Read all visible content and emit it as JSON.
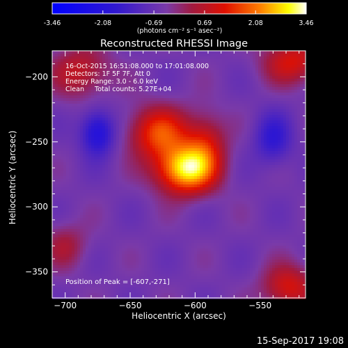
{
  "chart_data": {
    "type": "heatmap",
    "title": "Reconstructed RHESSI Image",
    "xlabel": "Heliocentric X (arcsec)",
    "ylabel": "Heliocentric Y (arcsec)",
    "xlim": [
      -710,
      -515
    ],
    "ylim": [
      -370,
      -180
    ],
    "x_ticks": [
      -700,
      -650,
      -600,
      -550
    ],
    "y_ticks": [
      -200,
      -250,
      -300,
      -350
    ],
    "colorbar": {
      "min": -3.46,
      "max": 3.46,
      "ticks": [
        -3.46,
        -2.08,
        -0.69,
        0.69,
        2.08,
        3.46
      ],
      "tick_labels": [
        "-3.46",
        "-2.08",
        "-0.69",
        "0.69",
        "2.08",
        "3.46"
      ],
      "unit_label": "(photons cm⁻² s⁻¹ asec⁻²)"
    },
    "annotations": {
      "time": "16-Oct-2015 16:51:08.000 to 17:01:08.000",
      "detectors": "Detectors: 1F 5F 7F, Att 0",
      "energy": "Energy Range: 3.0 - 6.0 keV",
      "method": "Clean     Total counts: 5.27E+04",
      "peak": "Position of Peak = [-607,-271]"
    },
    "peak": [
      -607,
      -271
    ],
    "sources": [
      {
        "x": -607,
        "y": -271,
        "amp": 3.46,
        "sx": 16,
        "sy": 13
      },
      {
        "x": -628,
        "y": -243,
        "amp": 2.1,
        "sx": 16,
        "sy": 14
      },
      {
        "x": -592,
        "y": -250,
        "amp": 1.3,
        "sx": 11,
        "sy": 16
      },
      {
        "x": -688,
        "y": -196,
        "amp": 1.3,
        "sx": 16,
        "sy": 14
      },
      {
        "x": -525,
        "y": -188,
        "amp": 1.6,
        "sx": 16,
        "sy": 12
      },
      {
        "x": -528,
        "y": -362,
        "amp": 1.6,
        "sx": 14,
        "sy": 12
      },
      {
        "x": -700,
        "y": -330,
        "amp": 0.9,
        "sx": 12,
        "sy": 12
      },
      {
        "x": -675,
        "y": -243,
        "amp": -1.8,
        "sx": 9,
        "sy": 12
      },
      {
        "x": -540,
        "y": -248,
        "amp": -1.2,
        "sx": 10,
        "sy": 14
      }
    ]
  },
  "footer": {
    "timestamp": "15-Sep-2017 19:08"
  }
}
